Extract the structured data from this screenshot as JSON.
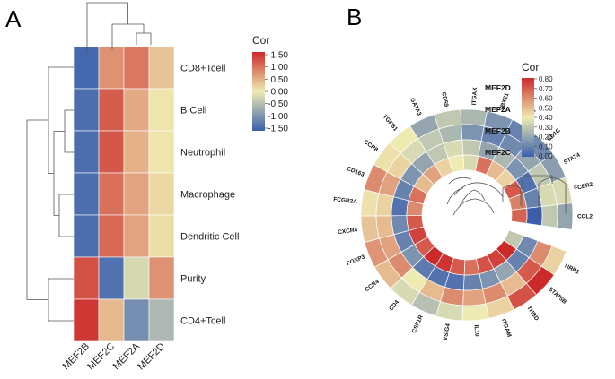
{
  "panels": {
    "a": "A",
    "b": "B"
  },
  "chart_data": [
    {
      "type": "heatmap",
      "panel": "A",
      "title": "",
      "rows": [
        "CD8+Tcell",
        "B Cell",
        "Neutrophil",
        "Macrophage",
        "Dendritic Cell",
        "Purity",
        "CD4+Tcell"
      ],
      "columns": [
        "MEF2B",
        "MEF2C",
        "MEF2A",
        "MEF2D"
      ],
      "values": [
        [
          -1.4,
          0.7,
          0.9,
          0.3
        ],
        [
          -1.35,
          1.1,
          0.5,
          0.05
        ],
        [
          -1.35,
          1.15,
          0.45,
          0.05
        ],
        [
          -1.35,
          0.95,
          0.55,
          0.15
        ],
        [
          -1.35,
          1.0,
          0.55,
          0.1
        ],
        [
          1.2,
          -1.3,
          -0.2,
          0.7
        ],
        [
          1.4,
          0.4,
          -1.0,
          -0.55
        ]
      ],
      "legend": {
        "title": "Cor",
        "range": [
          -1.5,
          1.5
        ],
        "ticks": [
          "1.50",
          "1.00",
          "0.50",
          "0.00",
          "-0.50",
          "-1.00",
          "-1.50"
        ]
      },
      "colors": {
        "low": "#3a5fae",
        "mid": "#eeebb2",
        "high": "#cc2a2a"
      }
    },
    {
      "type": "heatmap",
      "layout": "circular",
      "panel": "B",
      "title": "",
      "rings": [
        "MEF2D",
        "MEF2A",
        "MEF2B",
        "MEF2C"
      ],
      "genes": [
        "NRP1",
        "STAT5B",
        "THBD",
        "ITGAM",
        "IL10",
        "VSIG4",
        "CSF1R",
        "CD4",
        "CCR4",
        "FOXP3",
        "CXCR4",
        "FCGR2A",
        "CD163",
        "CCR8",
        "TGFB1",
        "GATA3",
        "CD59",
        "ITGAX",
        "TBX21",
        "CCR7",
        "CD1C",
        "STAT4",
        "FCER2",
        "CCL2"
      ],
      "values": [
        [
          0.45,
          0.8,
          0.72,
          0.45,
          0.4,
          0.35,
          0.28,
          0.35,
          0.5,
          0.58,
          0.48,
          0.42,
          0.6,
          0.42,
          0.4,
          0.2,
          0.3,
          0.25,
          0.15,
          0.1,
          0.12,
          0.18,
          0.35,
          0.2
        ],
        [
          0.6,
          0.7,
          0.5,
          0.6,
          0.55,
          0.6,
          0.5,
          0.4,
          0.6,
          0.55,
          0.5,
          0.45,
          0.55,
          0.45,
          0.35,
          0.3,
          0.25,
          0.15,
          0.1,
          0.12,
          0.2,
          0.3,
          0.35,
          0.3
        ],
        [
          0.12,
          0.1,
          0.2,
          0.15,
          0.1,
          0.05,
          0.05,
          0.08,
          0.15,
          0.1,
          0.12,
          0.05,
          0.1,
          0.15,
          0.2,
          0.3,
          0.35,
          0.3,
          0.2,
          0.25,
          0.15,
          0.05,
          0.1,
          0.0
        ],
        [
          0.3,
          0.8,
          0.75,
          0.72,
          0.65,
          0.7,
          0.78,
          0.8,
          0.7,
          0.75,
          0.7,
          0.6,
          0.65,
          0.5,
          0.55,
          0.45,
          0.4,
          0.35,
          0.65,
          0.5,
          0.45,
          0.7,
          0.62,
          0.68
        ]
      ],
      "legend": {
        "title": "Cor",
        "range": [
          0.0,
          0.8
        ],
        "ticks": [
          "0.80",
          "0.70",
          "0.60",
          "0.50",
          "0.40",
          "0.30",
          "0.20",
          "0.10",
          "0.00"
        ]
      },
      "colors": {
        "low": "#3a5fae",
        "mid": "#eeebb2",
        "high": "#cc2a2a"
      }
    }
  ]
}
